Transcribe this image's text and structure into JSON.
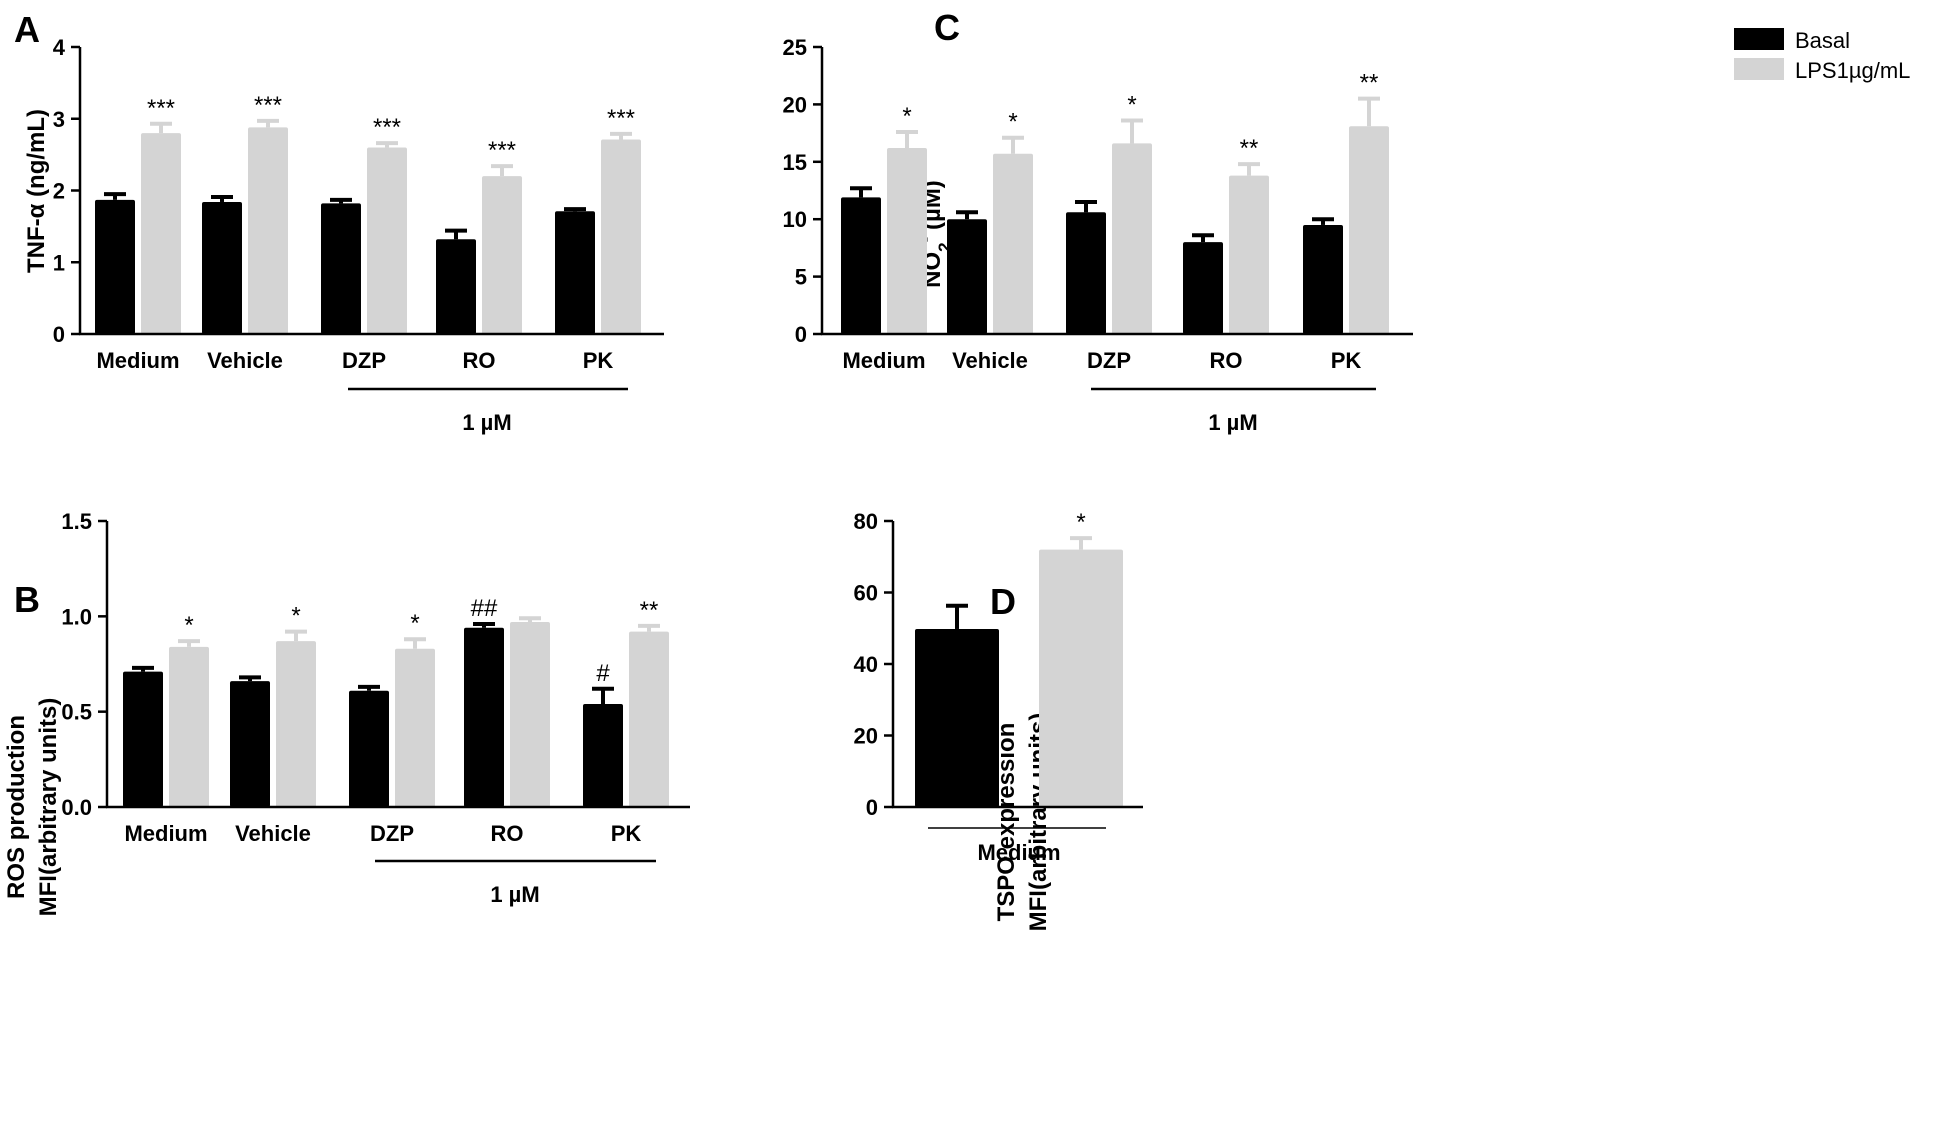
{
  "colors": {
    "basal": "#000000",
    "lps": "#d4d4d4",
    "axis": "#000000"
  },
  "legend": {
    "items": [
      {
        "label": "Basal",
        "color": "#000000"
      },
      {
        "label": "LPS1µg/mL",
        "color": "#d4d4d4"
      }
    ],
    "placement": "top-right"
  },
  "chart_data": [
    {
      "id": "A",
      "panel_label": "A",
      "type": "bar",
      "ylabel": "TNF-α (ng/mL)",
      "ylim": [
        0,
        4
      ],
      "yticks": [
        "0",
        "1",
        "2",
        "3",
        "4"
      ],
      "categories": [
        "Medium",
        "Vehicle",
        "DZP",
        "RO",
        "PK"
      ],
      "series": [
        {
          "name": "Basal",
          "values": [
            1.87,
            1.84,
            1.82,
            1.32,
            1.71
          ],
          "errors": [
            0.08,
            0.07,
            0.05,
            0.12,
            0.03
          ],
          "annotations": [
            "",
            "",
            "",
            "",
            ""
          ]
        },
        {
          "name": "LPS1µg/mL",
          "values": [
            2.8,
            2.88,
            2.6,
            2.2,
            2.71
          ],
          "errors": [
            0.13,
            0.09,
            0.06,
            0.14,
            0.08
          ],
          "annotations": [
            "***",
            "***",
            "***",
            "***",
            "***"
          ]
        }
      ],
      "bracket": {
        "label": "1 µM",
        "from": "DZP",
        "to": "PK"
      }
    },
    {
      "id": "B",
      "panel_label": "B",
      "type": "bar",
      "ylabel": [
        "ROS production",
        "MFI(arbitrary units)"
      ],
      "ylim": [
        0,
        1.5
      ],
      "yticks": [
        "0.0",
        "0.5",
        "1.0",
        "1.5"
      ],
      "categories": [
        "Medium",
        "Vehicle",
        "DZP",
        "RO",
        "PK"
      ],
      "series": [
        {
          "name": "Basal",
          "values": [
            0.71,
            0.66,
            0.61,
            0.94,
            0.54
          ],
          "errors": [
            0.02,
            0.02,
            0.02,
            0.02,
            0.08
          ],
          "annotations": [
            "",
            "",
            "",
            "##",
            "#"
          ]
        },
        {
          "name": "LPS1µg/mL",
          "values": [
            0.84,
            0.87,
            0.83,
            0.97,
            0.92
          ],
          "errors": [
            0.03,
            0.05,
            0.05,
            0.02,
            0.03
          ],
          "annotations": [
            "*",
            "*",
            "*",
            "",
            "**"
          ]
        }
      ],
      "bracket": {
        "label": "1 µM",
        "from": "DZP",
        "to": "PK"
      }
    },
    {
      "id": "C",
      "panel_label": "C",
      "type": "bar",
      "ylabel": "NO2- (µM)",
      "ylim": [
        0,
        25
      ],
      "yticks": [
        "0",
        "5",
        "10",
        "15",
        "20",
        "25"
      ],
      "categories": [
        "Medium",
        "Vehicle",
        "DZP",
        "RO",
        "PK"
      ],
      "series": [
        {
          "name": "Basal",
          "values": [
            11.9,
            10.0,
            10.6,
            8.0,
            9.5
          ],
          "errors": [
            0.8,
            0.6,
            0.9,
            0.6,
            0.5
          ],
          "annotations": [
            "",
            "",
            "",
            "",
            ""
          ]
        },
        {
          "name": "LPS1µg/mL",
          "values": [
            16.2,
            15.7,
            16.6,
            13.8,
            18.1
          ],
          "errors": [
            1.4,
            1.4,
            2.0,
            1.0,
            2.4
          ],
          "annotations": [
            "*",
            "*",
            "*",
            "**",
            "**"
          ]
        }
      ],
      "bracket": {
        "label": "1 µM",
        "from": "DZP",
        "to": "PK"
      }
    },
    {
      "id": "D",
      "panel_label": "D",
      "type": "bar",
      "ylabel": [
        "TSPO expression",
        "MFI(arbitrary units)"
      ],
      "ylim": [
        0,
        80
      ],
      "yticks": [
        "0",
        "20",
        "40",
        "60",
        "80"
      ],
      "categories": [
        "Medium"
      ],
      "series": [
        {
          "name": "Basal",
          "values": [
            49.8
          ],
          "errors": [
            6.5
          ],
          "annotations": [
            ""
          ]
        },
        {
          "name": "LPS1µg/mL",
          "values": [
            72.0
          ],
          "errors": [
            3.2
          ],
          "annotations": [
            "*"
          ]
        }
      ],
      "bracket": null
    }
  ]
}
